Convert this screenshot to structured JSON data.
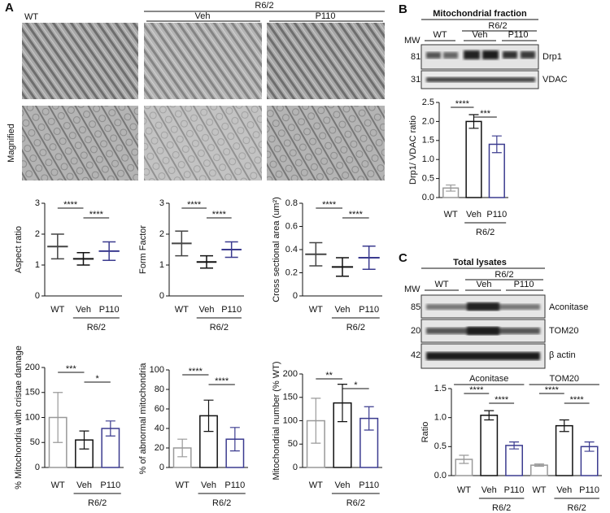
{
  "panel_a": {
    "label": "A",
    "wt": "WT",
    "group": "R6/2",
    "veh": "Veh",
    "p110": "P110",
    "magnified": "Magnified"
  },
  "panel_b": {
    "label": "B",
    "title": "Mitochondrial fraction",
    "group": "R6/2",
    "lanes": [
      "WT",
      "Veh",
      "P110"
    ],
    "mw": "MW",
    "markers": [
      "81",
      "31"
    ],
    "proteins": [
      "Drp1",
      "VDAC"
    ]
  },
  "panel_c": {
    "label": "C",
    "title": "Total lysates",
    "group": "R6/2",
    "lanes": [
      "WT",
      "Veh",
      "P110"
    ],
    "mw": "MW",
    "markers": [
      "85",
      "20",
      "42"
    ],
    "proteins": [
      "Aconitase",
      "TOM20",
      "β actin"
    ]
  },
  "chart_data": [
    {
      "type": "dot",
      "ylabel": "Aspect ratio",
      "categories": [
        "WT",
        "Veh",
        "P110"
      ],
      "values": [
        1.6,
        1.2,
        1.45
      ],
      "sd": [
        0.4,
        0.2,
        0.3
      ],
      "colors": [
        "#444444",
        "#111111",
        "#3b3b8f"
      ],
      "ylim": [
        0,
        3
      ],
      "yticks": [
        0,
        1,
        2,
        3
      ],
      "significance": [
        "****",
        "****"
      ],
      "group_label": "R6/2"
    },
    {
      "type": "dot",
      "ylabel": "Form Factor",
      "categories": [
        "WT",
        "Veh",
        "P110"
      ],
      "values": [
        1.7,
        1.1,
        1.5
      ],
      "sd": [
        0.4,
        0.2,
        0.25
      ],
      "colors": [
        "#444444",
        "#111111",
        "#3b3b8f"
      ],
      "ylim": [
        0,
        3
      ],
      "yticks": [
        0,
        1,
        2,
        3
      ],
      "significance": [
        "****",
        "****"
      ],
      "group_label": "R6/2"
    },
    {
      "type": "dot",
      "ylabel": "Cross sectional area (um²)",
      "categories": [
        "WT",
        "Veh",
        "P110"
      ],
      "values": [
        0.36,
        0.25,
        0.33
      ],
      "sd": [
        0.1,
        0.08,
        0.1
      ],
      "colors": [
        "#444444",
        "#111111",
        "#3b3b8f"
      ],
      "ylim": [
        0,
        0.8
      ],
      "yticks": [
        0,
        0.2,
        0.4,
        0.6,
        0.8
      ],
      "significance": [
        "****",
        "****"
      ],
      "group_label": "R6/2"
    },
    {
      "type": "bar",
      "ylabel": "% Mitochondria with cristae damage",
      "categories": [
        "WT",
        "Veh",
        "P110"
      ],
      "values": [
        100,
        55,
        78
      ],
      "sd": [
        50,
        18,
        15
      ],
      "colors": [
        "#999999",
        "#111111",
        "#3b3b8f"
      ],
      "ylim": [
        0,
        200
      ],
      "yticks": [
        0,
        50,
        100,
        150,
        200
      ],
      "significance": [
        "***",
        "*"
      ],
      "group_label": "R6/2"
    },
    {
      "type": "bar",
      "ylabel": "% of abnormal mitochondria",
      "categories": [
        "WT",
        "Veh",
        "P110"
      ],
      "values": [
        20,
        53,
        29
      ],
      "sd": [
        9,
        16,
        12
      ],
      "colors": [
        "#999999",
        "#111111",
        "#3b3b8f"
      ],
      "ylim": [
        0,
        100
      ],
      "yticks": [
        0,
        20,
        40,
        60,
        80,
        100
      ],
      "significance": [
        "****",
        "****"
      ],
      "group_label": "R6/2"
    },
    {
      "type": "bar",
      "ylabel": "Mitochondrial number (% WT)",
      "categories": [
        "WT",
        "Veh",
        "P110"
      ],
      "values": [
        100,
        138,
        105
      ],
      "sd": [
        48,
        40,
        25
      ],
      "colors": [
        "#999999",
        "#111111",
        "#3b3b8f"
      ],
      "ylim": [
        0,
        200
      ],
      "yticks": [
        0,
        50,
        100,
        150,
        200
      ],
      "significance": [
        "**",
        "*"
      ],
      "group_label": "R6/2"
    },
    {
      "type": "bar",
      "ylabel": "Drp1/ VDAC ratio",
      "categories": [
        "WT",
        "Veh",
        "P110"
      ],
      "values": [
        0.25,
        2.0,
        1.4
      ],
      "sd": [
        0.08,
        0.18,
        0.22
      ],
      "colors": [
        "#999999",
        "#111111",
        "#3b3b8f"
      ],
      "ylim": [
        0,
        2.5
      ],
      "yticks": [
        {
          "value": 0,
          "label": "0.0"
        },
        0.5,
        {
          "value": 1,
          "label": "1.0"
        },
        1.5,
        {
          "value": 2,
          "label": "2.0"
        },
        2.5
      ],
      "significance": [
        "****",
        "***"
      ],
      "group_label": "R6/2"
    },
    {
      "type": "bar",
      "ylabel": "Ratio",
      "groups": [
        "Aconitase",
        "TOM20"
      ],
      "categories": [
        "WT",
        "Veh",
        "P110",
        "WT",
        "Veh",
        "P110"
      ],
      "values": [
        0.28,
        1.04,
        0.52,
        0.18,
        0.86,
        0.5
      ],
      "sd": [
        0.07,
        0.08,
        0.06,
        0.02,
        0.1,
        0.08
      ],
      "colors": [
        "#999999",
        "#111111",
        "#3b3b8f",
        "#999999",
        "#111111",
        "#3b3b8f"
      ],
      "ylim": [
        0,
        1.5
      ],
      "yticks": [
        {
          "value": 0,
          "label": "0.0"
        },
        0.5,
        {
          "value": 1,
          "label": "1.0"
        },
        1.5
      ],
      "significance": [
        "****",
        "****",
        "****",
        "****"
      ],
      "group_label": "R6/2"
    }
  ]
}
